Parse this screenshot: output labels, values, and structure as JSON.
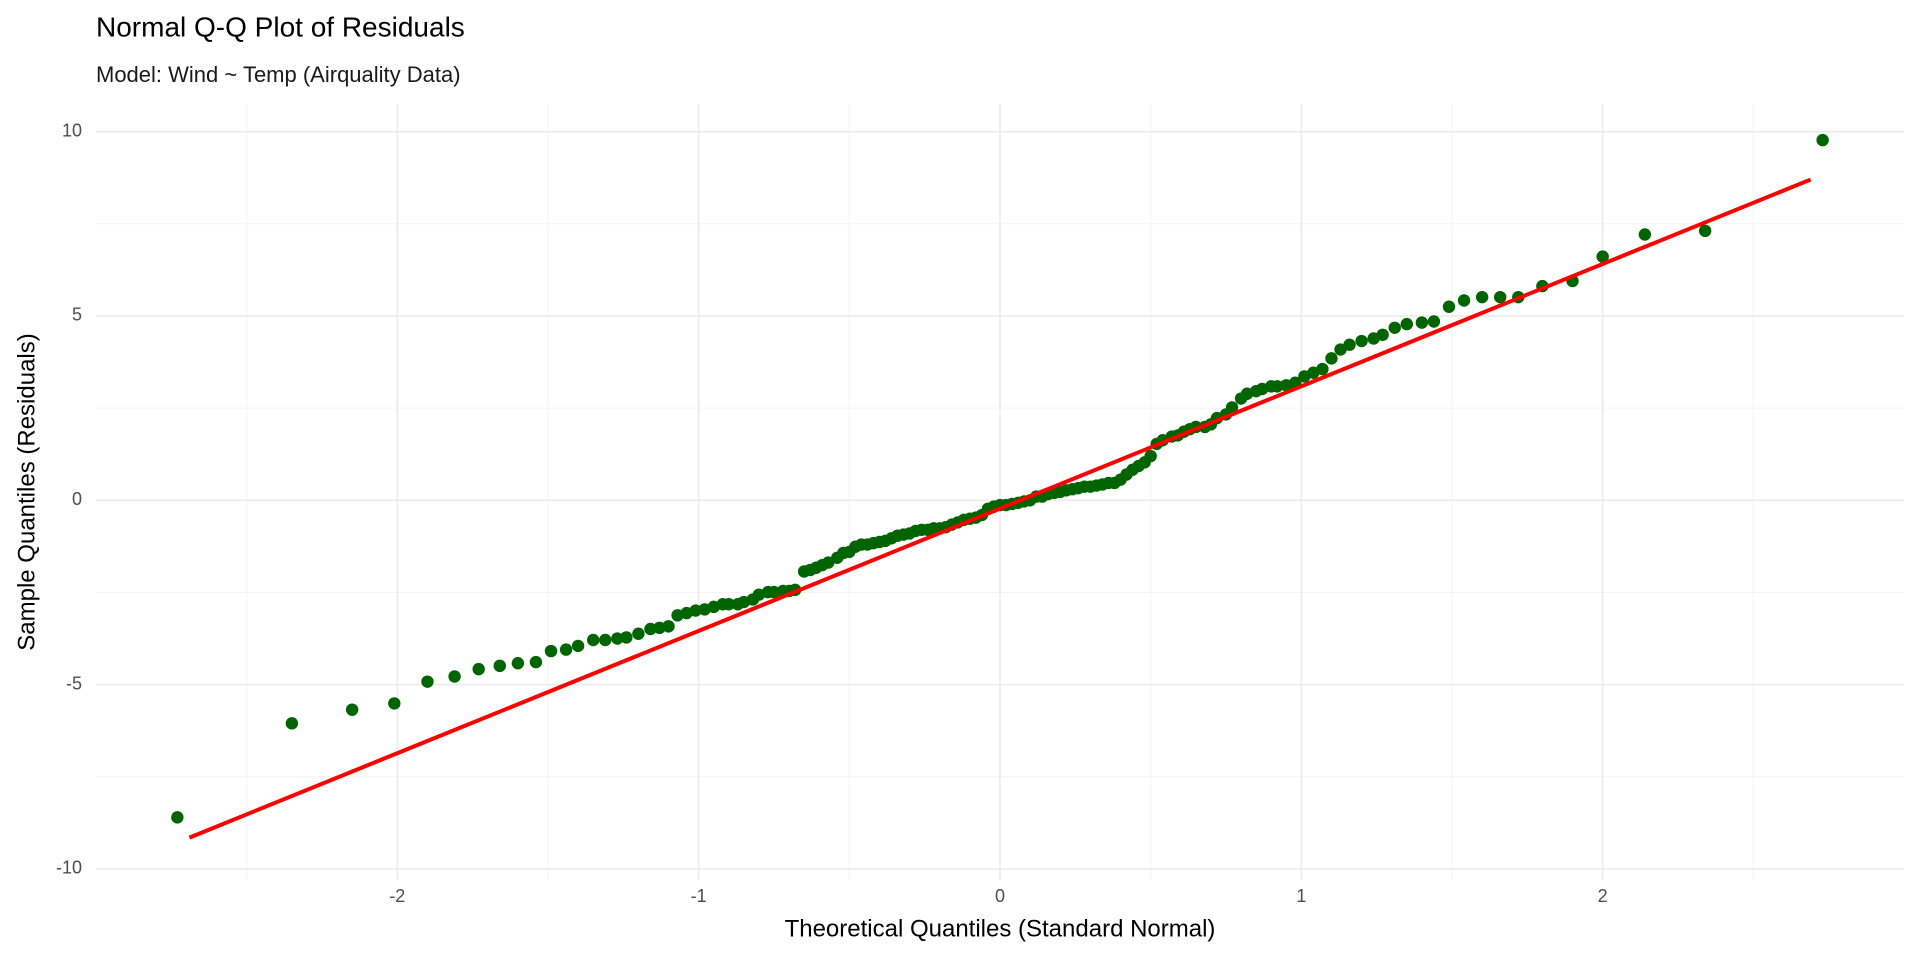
{
  "chart_data": {
    "type": "scatter",
    "title": "Normal Q-Q Plot of Residuals",
    "subtitle": "Model: Wind ~ Temp (Airquality Data)",
    "x_label": "Theoretical Quantiles (Standard Normal)",
    "y_label": "Sample Quantiles (Residuals)",
    "color": "#006400",
    "x": [
      -2.73,
      -2.35,
      -2.15,
      -2.01,
      -1.9,
      -1.81,
      -1.73,
      -1.66,
      -1.6,
      -1.54,
      -1.49,
      -1.44,
      -1.4,
      -1.35,
      -1.31,
      -1.27,
      -1.24,
      -1.2,
      -1.16,
      -1.13,
      -1.1,
      -1.07,
      -1.04,
      -1.01,
      -0.98,
      -0.95,
      -0.92,
      -0.9,
      -0.87,
      -0.85,
      -0.82,
      -0.8,
      -0.77,
      -0.75,
      -0.72,
      -0.7,
      -0.68,
      -0.65,
      -0.63,
      -0.61,
      -0.59,
      -0.57,
      -0.54,
      -0.52,
      -0.5,
      -0.48,
      -0.46,
      -0.44,
      -0.42,
      -0.4,
      -0.38,
      -0.36,
      -0.34,
      -0.32,
      -0.3,
      -0.28,
      -0.26,
      -0.24,
      -0.22,
      -0.2,
      -0.18,
      -0.16,
      -0.14,
      -0.12,
      -0.1,
      -0.08,
      -0.06,
      -0.04,
      -0.02,
      0.0,
      0.02,
      0.04,
      0.06,
      0.08,
      0.1,
      0.12,
      0.14,
      0.16,
      0.18,
      0.2,
      0.22,
      0.24,
      0.26,
      0.28,
      0.3,
      0.32,
      0.34,
      0.36,
      0.38,
      0.4,
      0.42,
      0.44,
      0.46,
      0.48,
      0.5,
      0.52,
      0.54,
      0.57,
      0.59,
      0.61,
      0.63,
      0.65,
      0.68,
      0.7,
      0.72,
      0.75,
      0.77,
      0.8,
      0.82,
      0.85,
      0.87,
      0.9,
      0.92,
      0.95,
      0.98,
      1.01,
      1.04,
      1.07,
      1.1,
      1.13,
      1.16,
      1.2,
      1.24,
      1.27,
      1.31,
      1.35,
      1.4,
      1.44,
      1.49,
      1.54,
      1.6,
      1.66,
      1.72,
      1.8,
      1.9,
      2.0,
      2.14,
      2.34,
      2.73
    ],
    "values": [
      -8.6,
      -6.05,
      -5.68,
      -5.51,
      -4.92,
      -4.78,
      -4.58,
      -4.49,
      -4.42,
      -4.39,
      -4.09,
      -4.05,
      -3.95,
      -3.79,
      -3.79,
      -3.75,
      -3.72,
      -3.62,
      -3.49,
      -3.46,
      -3.42,
      -3.12,
      -3.06,
      -2.99,
      -2.96,
      -2.89,
      -2.82,
      -2.82,
      -2.82,
      -2.76,
      -2.69,
      -2.56,
      -2.49,
      -2.49,
      -2.46,
      -2.46,
      -2.43,
      -1.93,
      -1.89,
      -1.83,
      -1.76,
      -1.69,
      -1.56,
      -1.43,
      -1.4,
      -1.26,
      -1.2,
      -1.2,
      -1.16,
      -1.13,
      -1.1,
      -1.03,
      -0.96,
      -0.93,
      -0.9,
      -0.83,
      -0.8,
      -0.8,
      -0.76,
      -0.76,
      -0.73,
      -0.66,
      -0.6,
      -0.53,
      -0.5,
      -0.47,
      -0.4,
      -0.23,
      -0.17,
      -0.13,
      -0.13,
      -0.1,
      -0.07,
      -0.03,
      0.0,
      0.1,
      0.1,
      0.17,
      0.2,
      0.23,
      0.27,
      0.3,
      0.33,
      0.37,
      0.37,
      0.4,
      0.43,
      0.47,
      0.47,
      0.56,
      0.7,
      0.83,
      0.93,
      1.03,
      1.2,
      1.53,
      1.63,
      1.73,
      1.76,
      1.86,
      1.93,
      1.99,
      1.99,
      2.06,
      2.23,
      2.33,
      2.52,
      2.76,
      2.89,
      2.96,
      3.02,
      3.09,
      3.09,
      3.12,
      3.19,
      3.36,
      3.46,
      3.56,
      3.85,
      4.09,
      4.22,
      4.32,
      4.39,
      4.49,
      4.68,
      4.78,
      4.82,
      4.85,
      5.25,
      5.42,
      5.51,
      5.51,
      5.51,
      5.81,
      5.95,
      6.61,
      7.21,
      7.31,
      9.77
    ],
    "reference_line": {
      "x": [
        -2.69,
        2.69
      ],
      "y": [
        -9.15,
        8.7
      ],
      "color": "#ff0000"
    },
    "xlim": [
      -3,
      3
    ],
    "ylim": [
      -10.3,
      10.75
    ],
    "xticks": [
      -2,
      -1,
      0,
      1,
      2
    ],
    "yticks": [
      -10,
      -5,
      0,
      5,
      10
    ],
    "x_minor_grid": [
      -2.5,
      -1.5,
      -0.5,
      0.5,
      1.5,
      2.5
    ],
    "y_minor_grid": [
      -7.5,
      -2.5,
      2.5,
      7.5
    ],
    "grid": true
  }
}
